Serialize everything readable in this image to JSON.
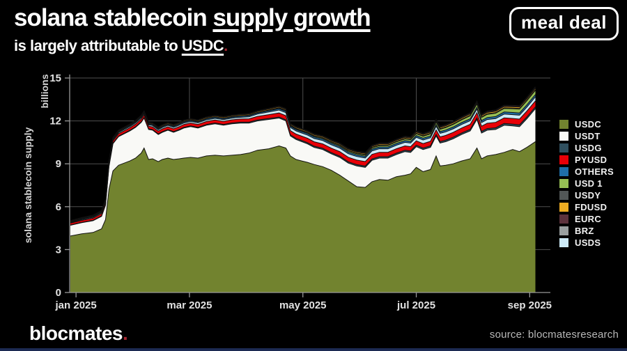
{
  "header": {
    "title_plain": "solana stablecoin ",
    "title_underlined": "supply growth",
    "subtitle_plain": "is largely attributable to ",
    "subtitle_underlined": "USDC",
    "subtitle_period": ".",
    "logo_text": "meal deal"
  },
  "footer": {
    "brand": "blocmates",
    "brand_period": ".",
    "source": "source: blocmatesresearch"
  },
  "colors": {
    "background": "#000000",
    "accent_red": "#a62530",
    "grid": "#4f4f4f",
    "spine": "#989898",
    "tick_text": "#e2e2e2",
    "axis_label_text": "#d6d6d6",
    "band_edge": "#101010",
    "bottom_bar": "#1c2a52"
  },
  "chart_data": {
    "type": "area",
    "stacked": true,
    "units": "billions (USD)",
    "ylabel": "solana stablecoin supply",
    "y_unit_label": "billions",
    "ylim": [
      0,
      15
    ],
    "y_ticks": [
      0,
      3,
      6,
      9,
      12,
      15
    ],
    "x_ticks": [
      {
        "label": "jan 2025",
        "t": 0.1
      },
      {
        "label": "mar 2025",
        "t": 2.1
      },
      {
        "label": "may 2025",
        "t": 4.1
      },
      {
        "label": "jul 2025",
        "t": 6.1
      },
      {
        "label": "sep 2025",
        "t": 8.1
      }
    ],
    "grid_vertical_t": [
      2.1,
      4.1,
      6.1
    ],
    "legend_order": [
      "USDC",
      "USDT",
      "USDG",
      "PYUSD",
      "OTHERS",
      "USD 1",
      "USDY",
      "FDUSD",
      "EURC",
      "BRZ",
      "USDS"
    ],
    "x_months_since_jan2025": [
      0,
      0.2,
      0.4,
      0.55,
      0.62,
      0.68,
      0.75,
      0.85,
      0.95,
      1.05,
      1.15,
      1.25,
      1.3,
      1.38,
      1.45,
      1.55,
      1.62,
      1.72,
      1.82,
      1.92,
      2,
      2.12,
      2.25,
      2.4,
      2.55,
      2.7,
      2.85,
      3,
      3.15,
      3.3,
      3.5,
      3.68,
      3.8,
      3.88,
      3.98,
      4.08,
      4.18,
      4.3,
      4.45,
      4.6,
      4.75,
      4.9,
      5.05,
      5.2,
      5.32,
      5.45,
      5.6,
      5.75,
      5.9,
      6,
      6.1,
      6.22,
      6.35,
      6.45,
      6.52,
      6.62,
      6.75,
      6.9,
      7.05,
      7.17,
      7.25,
      7.35,
      7.5,
      7.65,
      7.8,
      7.92,
      8.05,
      8.2
    ],
    "series": [
      {
        "name": "USDC",
        "color": "#72832f",
        "values": [
          3.95,
          4.1,
          4.2,
          4.45,
          5.1,
          7.2,
          8.5,
          8.9,
          9.05,
          9.2,
          9.4,
          9.75,
          10.1,
          9.3,
          9.35,
          9.15,
          9.3,
          9.4,
          9.3,
          9.35,
          9.4,
          9.45,
          9.4,
          9.55,
          9.6,
          9.55,
          9.6,
          9.65,
          9.75,
          9.95,
          10.05,
          10.25,
          10.1,
          9.55,
          9.3,
          9.2,
          9.1,
          8.95,
          8.8,
          8.55,
          8.2,
          7.8,
          7.4,
          7.35,
          7.75,
          7.9,
          7.85,
          8.1,
          8.2,
          8.3,
          8.75,
          8.45,
          8.6,
          9.55,
          8.85,
          8.9,
          9.0,
          9.2,
          9.35,
          10.1,
          9.35,
          9.55,
          9.65,
          9.8,
          10.0,
          9.85,
          10.15,
          10.55
        ]
      },
      {
        "name": "USDT",
        "color": "#f9f9f6",
        "values": [
          0.75,
          0.78,
          0.82,
          0.88,
          1.0,
          1.6,
          1.9,
          2.0,
          2.05,
          2.1,
          2.15,
          2.15,
          2.1,
          2.1,
          2.0,
          1.9,
          1.9,
          1.95,
          1.9,
          2.0,
          2.1,
          2.15,
          2.1,
          2.15,
          2.2,
          2.15,
          2.2,
          2.2,
          2.1,
          2.05,
          2.05,
          1.95,
          1.9,
          1.4,
          1.4,
          1.35,
          1.3,
          1.2,
          1.2,
          1.15,
          1.25,
          1.25,
          1.45,
          1.4,
          1.5,
          1.5,
          1.55,
          1.55,
          1.65,
          1.5,
          1.45,
          1.55,
          1.55,
          1.4,
          1.6,
          1.65,
          1.75,
          1.85,
          1.95,
          2.0,
          1.8,
          1.8,
          1.75,
          1.9,
          1.65,
          1.75,
          2.0,
          2.3
        ]
      },
      {
        "name": "USDG",
        "color": "#30505f",
        "knots": {
          "t": [
            0,
            1,
            2,
            3,
            4,
            5,
            6,
            7,
            8.2
          ],
          "v": [
            0.02,
            0.04,
            0.05,
            0.06,
            0.08,
            0.09,
            0.1,
            0.11,
            0.13
          ]
        }
      },
      {
        "name": "PYUSD",
        "color": "#e80007",
        "knots": {
          "t": [
            0,
            0.7,
            1,
            2,
            3,
            3.6,
            4,
            5,
            6,
            7,
            8.2
          ],
          "v": [
            0.13,
            0.16,
            0.18,
            0.2,
            0.22,
            0.28,
            0.3,
            0.32,
            0.3,
            0.35,
            0.42
          ]
        }
      },
      {
        "name": "USDS",
        "color": "#cdeaf7",
        "knots": {
          "t": [
            0,
            0.7,
            1,
            2,
            3,
            3.6,
            4,
            5,
            6,
            7,
            8.2
          ],
          "v": [
            0.04,
            0.07,
            0.08,
            0.1,
            0.12,
            0.2,
            0.22,
            0.25,
            0.25,
            0.25,
            0.28
          ]
        }
      },
      {
        "name": "OTHERS",
        "color": "#1f6fa8",
        "knots": {
          "t": [
            0,
            1,
            2,
            3,
            4,
            5,
            6,
            7,
            8.2
          ],
          "v": [
            0.05,
            0.07,
            0.08,
            0.08,
            0.1,
            0.12,
            0.12,
            0.13,
            0.16
          ]
        }
      },
      {
        "name": "USD 1",
        "color": "#96bf54",
        "knots": {
          "t": [
            0,
            3.4,
            3.6,
            4,
            5,
            6,
            7,
            7.8,
            8.2
          ],
          "v": [
            0,
            0,
            0.03,
            0.05,
            0.08,
            0.12,
            0.2,
            0.26,
            0.3
          ]
        }
      },
      {
        "name": "USDY",
        "color": "#525757",
        "knots": {
          "t": [
            0,
            4,
            8.2
          ],
          "v": [
            0.02,
            0.03,
            0.04
          ]
        }
      },
      {
        "name": "FDUSD",
        "color": "#eead22",
        "knots": {
          "t": [
            0,
            2,
            4,
            6,
            8.2
          ],
          "v": [
            0.04,
            0.06,
            0.07,
            0.08,
            0.1
          ]
        }
      },
      {
        "name": "EURC",
        "color": "#5c323c",
        "knots": {
          "t": [
            0,
            4,
            8.2
          ],
          "v": [
            0.02,
            0.04,
            0.07
          ]
        }
      },
      {
        "name": "BRZ",
        "color": "#9aa0a0",
        "knots": {
          "t": [
            0,
            4,
            8.2
          ],
          "v": [
            0.01,
            0.02,
            0.04
          ]
        }
      }
    ]
  }
}
